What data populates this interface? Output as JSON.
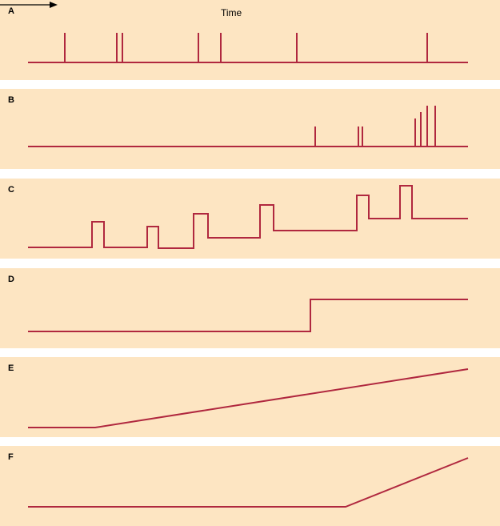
{
  "header": {
    "time_label": "Time"
  },
  "panels": [
    {
      "label": "A"
    },
    {
      "label": "B"
    },
    {
      "label": "C"
    },
    {
      "label": "D"
    },
    {
      "label": "E"
    },
    {
      "label": "F"
    }
  ],
  "colors": {
    "background": "#fde5c2",
    "trace": "#b0283f"
  }
}
